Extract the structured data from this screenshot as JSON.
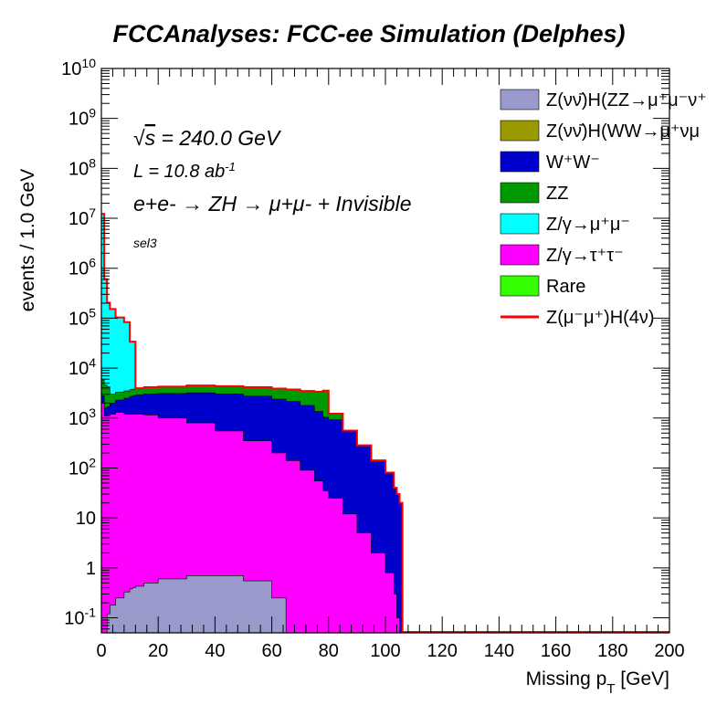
{
  "chart_data": {
    "type": "area",
    "stacked": true,
    "title": "FCCAnalyses: FCC-ee Simulation (Delphes)",
    "xlabel": "Missing p_T [GeV]",
    "ylabel": "events / 1.0 GeV",
    "xlim": [
      0,
      200
    ],
    "ylim": [
      0.05,
      10000000000
    ],
    "y_scale": "log",
    "x_ticks": [
      "0",
      "20",
      "40",
      "60",
      "80",
      "100",
      "120",
      "140",
      "160",
      "180",
      "200"
    ],
    "y_ticks": [
      "10^-1",
      "1",
      "10",
      "10^2",
      "10^3",
      "10^4",
      "10^5",
      "10^6",
      "10^7",
      "10^8",
      "10^9",
      "10^10"
    ],
    "annotations": {
      "sqrt_s": "= 240.0 GeV",
      "lumi": "L = 10.8 ab",
      "lumi_exp": "-1",
      "process": "e+e- → ZH → μ+μ- + Invisible",
      "selection": "sel3"
    },
    "legend_position": "top-right",
    "legend": [
      {
        "label": "Z(νν̄)H(ZZ→μ⁺μ⁻ν⁺",
        "color": "#9999cc",
        "style": "fill"
      },
      {
        "label": "Z(νν̄)H(WW→μ⁺νμ",
        "color": "#999900",
        "style": "fill"
      },
      {
        "label": "W⁺W⁻",
        "color": "#0000cc",
        "style": "fill"
      },
      {
        "label": "ZZ",
        "color": "#009900",
        "style": "fill"
      },
      {
        "label": "Z/γ→μ⁺μ⁻",
        "color": "#00ffff",
        "style": "fill"
      },
      {
        "label": "Z/γ→τ⁺τ⁻",
        "color": "#ff00ff",
        "style": "fill"
      },
      {
        "label": "Rare",
        "color": "#33ff00",
        "style": "fill"
      },
      {
        "label": "Z(μ⁻μ⁺)H(4ν)",
        "color": "#ff0000",
        "style": "line"
      }
    ],
    "x": [
      0,
      1,
      2,
      3,
      5,
      8,
      10,
      11,
      12,
      15,
      20,
      30,
      40,
      50,
      60,
      65,
      70,
      75,
      78,
      80,
      85,
      90,
      95,
      100,
      103,
      104,
      105,
      106
    ],
    "series": [
      {
        "name": "Z(νν̄)H(ZZ→μ⁺μ⁻ν⁺",
        "color": "#9999cc",
        "values": [
          0.03,
          0.05,
          0.12,
          0.18,
          0.25,
          0.33,
          0.38,
          0.4,
          0.43,
          0.5,
          0.6,
          0.7,
          0.7,
          0.55,
          0.25,
          0.05,
          0,
          0,
          0,
          0,
          0,
          0,
          0,
          0,
          0,
          0,
          0,
          0
        ]
      },
      {
        "name": "Z/γ→τ⁺τ⁻",
        "color": "#ff00ff",
        "values": [
          2000,
          1100,
          1100,
          1200,
          1300,
          1200,
          1200,
          1200,
          1200,
          1150,
          1000,
          800,
          550,
          350,
          200,
          140,
          90,
          55,
          35,
          25,
          12,
          5,
          2,
          0.8,
          0.3,
          0.1,
          0.04,
          0
        ]
      },
      {
        "name": "W⁺W⁻",
        "color": "#0000cc",
        "values": [
          800,
          500,
          600,
          800,
          1000,
          1300,
          1500,
          1600,
          1700,
          1900,
          2100,
          2400,
          2500,
          2400,
          2200,
          2000,
          1700,
          1300,
          1000,
          900,
          550,
          280,
          140,
          80,
          40,
          30,
          20,
          0
        ]
      },
      {
        "name": "ZZ",
        "color": "#009900",
        "values": [
          3000,
          3000,
          2500,
          1000,
          1000,
          1000,
          1000,
          1000,
          1050,
          1100,
          1150,
          1300,
          1300,
          1400,
          1500,
          1600,
          1700,
          2000,
          2500,
          300,
          0,
          0,
          0,
          0,
          0,
          0,
          0,
          0
        ]
      },
      {
        "name": "Z/γ→μ⁺μ⁻",
        "color": "#00ffff",
        "values": [
          12000000,
          600000,
          200000,
          150000,
          100000,
          80000,
          30000,
          30000,
          0,
          0,
          0,
          0,
          0,
          0,
          0,
          0,
          0,
          0,
          0,
          0,
          0,
          0,
          0,
          0,
          0,
          0,
          0,
          0
        ]
      },
      {
        "name": "Rare",
        "color": "#33ff00",
        "values": [
          300000,
          0,
          0,
          0,
          0,
          0,
          0,
          0,
          0,
          0,
          0,
          0,
          0,
          0,
          0,
          0,
          0,
          0,
          0,
          0,
          0,
          0,
          0,
          0,
          0,
          0,
          0,
          0
        ]
      }
    ],
    "signal_line": {
      "name": "Z(μ⁻μ⁺)H(4ν)",
      "color": "#ff0000",
      "style": "line"
    }
  }
}
